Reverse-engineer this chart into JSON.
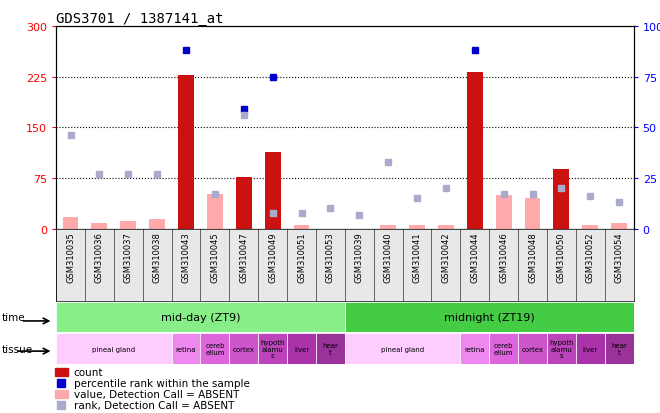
{
  "title": "GDS3701 / 1387141_at",
  "samples": [
    "GSM310035",
    "GSM310036",
    "GSM310037",
    "GSM310038",
    "GSM310043",
    "GSM310045",
    "GSM310047",
    "GSM310049",
    "GSM310051",
    "GSM310053",
    "GSM310039",
    "GSM310040",
    "GSM310041",
    "GSM310042",
    "GSM310044",
    "GSM310046",
    "GSM310048",
    "GSM310050",
    "GSM310052",
    "GSM310054"
  ],
  "count_values": [
    null,
    null,
    null,
    null,
    228,
    null,
    76,
    113,
    null,
    null,
    null,
    null,
    null,
    null,
    232,
    null,
    null,
    88,
    null,
    null
  ],
  "count_absent_values": [
    18,
    8,
    12,
    15,
    null,
    52,
    null,
    null,
    5,
    null,
    null,
    5,
    5,
    5,
    null,
    50,
    45,
    null,
    5,
    8
  ],
  "rank_values": [
    null,
    null,
    null,
    null,
    88,
    null,
    59,
    75,
    null,
    null,
    null,
    null,
    null,
    null,
    88,
    null,
    null,
    null,
    null,
    null
  ],
  "rank_absent_values": [
    46,
    27,
    27,
    27,
    null,
    17,
    56,
    8,
    8,
    10,
    7,
    33,
    15,
    20,
    null,
    17,
    17,
    20,
    16,
    13
  ],
  "ylim_left": [
    0,
    300
  ],
  "ylim_right": [
    0,
    100
  ],
  "yticks_left": [
    0,
    75,
    150,
    225,
    300
  ],
  "yticks_right": [
    0,
    25,
    50,
    75,
    100
  ],
  "time_bands": [
    {
      "label": "mid-day (ZT9)",
      "start": 0,
      "end": 10,
      "color": "#88ee88"
    },
    {
      "label": "midnight (ZT19)",
      "start": 10,
      "end": 20,
      "color": "#44cc44"
    }
  ],
  "tissue_bands": [
    {
      "label": "pineal gland",
      "start": 0,
      "end": 4,
      "color": "#ffccff"
    },
    {
      "label": "retina",
      "start": 4,
      "end": 5,
      "color": "#ee88ee"
    },
    {
      "label": "cereb\nellum",
      "start": 5,
      "end": 6,
      "color": "#dd66dd"
    },
    {
      "label": "cortex",
      "start": 6,
      "end": 7,
      "color": "#cc55cc"
    },
    {
      "label": "hypoth\nalamu\ns",
      "start": 7,
      "end": 8,
      "color": "#bb44bb"
    },
    {
      "label": "liver",
      "start": 8,
      "end": 9,
      "color": "#aa33aa"
    },
    {
      "label": "hear\nt",
      "start": 9,
      "end": 10,
      "color": "#993399"
    },
    {
      "label": "pineal gland",
      "start": 10,
      "end": 14,
      "color": "#ffccff"
    },
    {
      "label": "retina",
      "start": 14,
      "end": 15,
      "color": "#ee88ee"
    },
    {
      "label": "cereb\nellum",
      "start": 15,
      "end": 16,
      "color": "#dd66dd"
    },
    {
      "label": "cortex",
      "start": 16,
      "end": 17,
      "color": "#cc55cc"
    },
    {
      "label": "hypoth\nalamu\ns",
      "start": 17,
      "end": 18,
      "color": "#bb44bb"
    },
    {
      "label": "liver",
      "start": 18,
      "end": 19,
      "color": "#aa33aa"
    },
    {
      "label": "hear\nt",
      "start": 19,
      "end": 20,
      "color": "#993399"
    }
  ],
  "bar_color_present": "#cc1111",
  "bar_color_absent": "#ffaaaa",
  "marker_color_present": "#0000cc",
  "marker_color_absent": "#aaaacc",
  "bar_width": 0.55,
  "marker_size": 5,
  "bg_color": "#e8e8e8"
}
